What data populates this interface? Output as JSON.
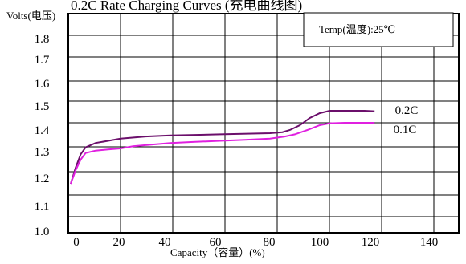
{
  "chart_data": {
    "type": "line",
    "title": "0.2C Rate Charging Curves (充电曲线图)",
    "ylabel": "Volts(电压)",
    "xlabel": "Capacity（容量）(%)",
    "annotation": "Temp(温度):25℃",
    "x_ticks": [
      0,
      20,
      40,
      60,
      80,
      100,
      120,
      140
    ],
    "x_tick_labels": [
      "0",
      "20",
      "40",
      "60",
      "80",
      "100",
      "120",
      "140"
    ],
    "y_tick_labels": [
      "1.0",
      "1.1",
      "1.2",
      "1.3",
      "1.4",
      "1.5",
      "1.6",
      "1.7",
      "1.8"
    ],
    "grid": true,
    "legend": "inline labels at line ends",
    "series": [
      {
        "name": "0.2C",
        "color": "#6b0f6b",
        "points": [
          [
            0,
            1.18
          ],
          [
            2,
            1.24
          ],
          [
            4,
            1.29
          ],
          [
            6,
            1.32
          ],
          [
            10,
            1.34
          ],
          [
            15,
            1.35
          ],
          [
            20,
            1.36
          ],
          [
            30,
            1.37
          ],
          [
            40,
            1.375
          ],
          [
            60,
            1.38
          ],
          [
            80,
            1.385
          ],
          [
            85,
            1.39
          ],
          [
            88,
            1.4
          ],
          [
            92,
            1.42
          ],
          [
            96,
            1.45
          ],
          [
            100,
            1.47
          ],
          [
            104,
            1.48
          ],
          [
            110,
            1.48
          ],
          [
            118,
            1.48
          ],
          [
            122,
            1.478
          ]
        ]
      },
      {
        "name": "0.1C",
        "color": "#e020e0",
        "points": [
          [
            0,
            1.18
          ],
          [
            2,
            1.23
          ],
          [
            4,
            1.27
          ],
          [
            6,
            1.295
          ],
          [
            10,
            1.305
          ],
          [
            15,
            1.31
          ],
          [
            20,
            1.315
          ],
          [
            25,
            1.325
          ],
          [
            30,
            1.33
          ],
          [
            40,
            1.34
          ],
          [
            50,
            1.345
          ],
          [
            60,
            1.35
          ],
          [
            70,
            1.355
          ],
          [
            80,
            1.36
          ],
          [
            86,
            1.37
          ],
          [
            90,
            1.38
          ],
          [
            95,
            1.4
          ],
          [
            100,
            1.42
          ],
          [
            104,
            1.428
          ],
          [
            110,
            1.43
          ],
          [
            122,
            1.43
          ]
        ]
      }
    ]
  }
}
